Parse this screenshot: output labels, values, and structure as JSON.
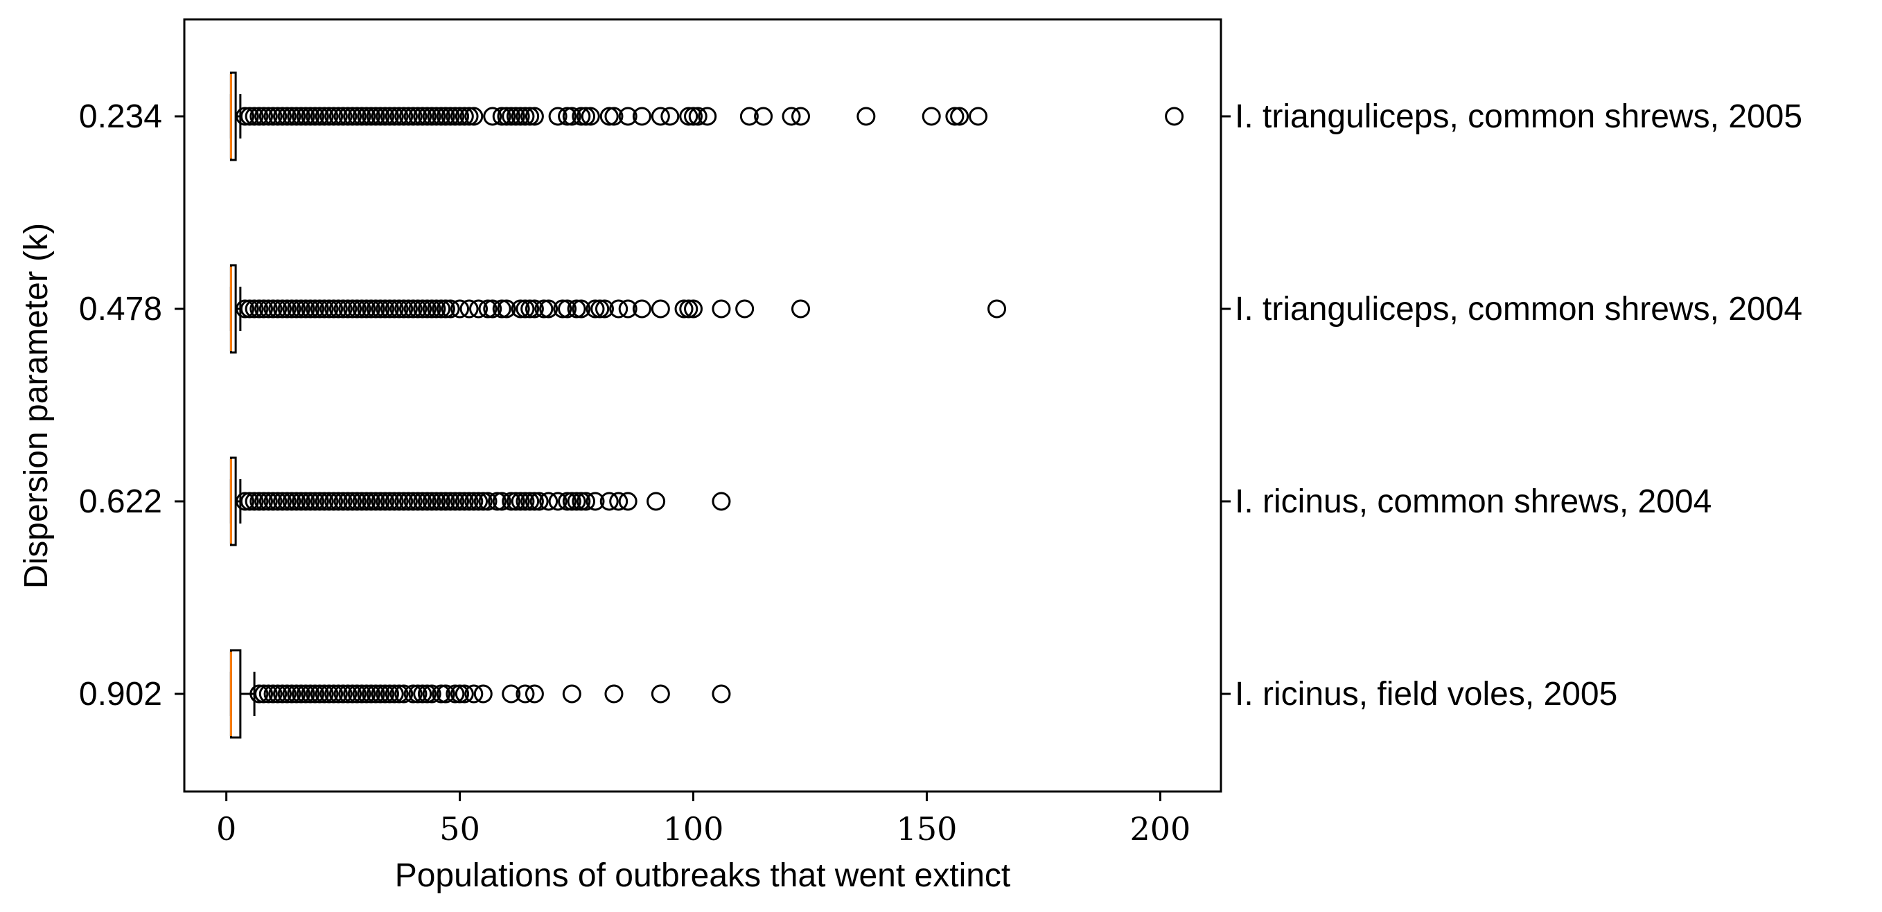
{
  "chart_data": {
    "type": "boxplot",
    "orientation": "horizontal",
    "xlabel": "Populations of outbreaks that went extinct",
    "ylabel": "Dispersion parameter (k)",
    "xlim": [
      -9,
      213
    ],
    "xticks": [
      0,
      50,
      100,
      150,
      200
    ],
    "grid": false,
    "colors": {
      "median": "#ff7f0e",
      "box": "#000000",
      "flier": "#000000"
    },
    "series": [
      {
        "k_label": "0.234",
        "right_label": "I. trianguliceps, common shrews, 2005",
        "box": {
          "whisker_low": 1,
          "q1": 1,
          "median": 1,
          "q3": 2,
          "whisker_high": 3
        },
        "fliers": [
          4,
          5,
          6,
          7,
          8,
          9,
          10,
          11,
          12,
          13,
          14,
          15,
          16,
          17,
          18,
          19,
          20,
          21,
          22,
          23,
          24,
          25,
          26,
          27,
          28,
          29,
          30,
          31,
          32,
          33,
          34,
          35,
          36,
          37,
          38,
          39,
          40,
          41,
          42,
          43,
          44,
          45,
          46,
          47,
          48,
          49,
          50,
          51,
          52,
          53,
          57,
          59,
          60,
          61,
          62,
          63,
          64,
          65,
          66,
          71,
          73,
          74,
          76,
          77,
          78,
          82,
          83,
          86,
          89,
          93,
          95,
          99,
          100,
          101,
          103,
          112,
          115,
          121,
          123,
          137,
          151,
          156,
          157,
          161,
          203
        ]
      },
      {
        "k_label": "0.478",
        "right_label": "I. trianguliceps, common shrews, 2004",
        "box": {
          "whisker_low": 1,
          "q1": 1,
          "median": 1,
          "q3": 2,
          "whisker_high": 3
        },
        "fliers": [
          4,
          5,
          6,
          7,
          8,
          9,
          10,
          11,
          12,
          13,
          14,
          15,
          16,
          17,
          18,
          19,
          20,
          21,
          22,
          23,
          24,
          25,
          26,
          27,
          28,
          29,
          30,
          31,
          32,
          33,
          34,
          35,
          36,
          37,
          38,
          39,
          40,
          41,
          42,
          43,
          44,
          45,
          46,
          47,
          48,
          50,
          52,
          54,
          56,
          57,
          59,
          60,
          63,
          64,
          65,
          66,
          68,
          69,
          72,
          73,
          75,
          76,
          79,
          80,
          81,
          84,
          86,
          89,
          93,
          98,
          99,
          100,
          106,
          111,
          123,
          165
        ]
      },
      {
        "k_label": "0.622",
        "right_label": "I. ricinus, common shrews, 2004",
        "box": {
          "whisker_low": 1,
          "q1": 1,
          "median": 1,
          "q3": 2,
          "whisker_high": 3
        },
        "fliers": [
          4,
          5,
          6,
          7,
          8,
          9,
          10,
          11,
          12,
          13,
          14,
          15,
          16,
          17,
          18,
          19,
          20,
          21,
          22,
          23,
          24,
          25,
          26,
          27,
          28,
          29,
          30,
          31,
          32,
          33,
          34,
          35,
          36,
          37,
          38,
          39,
          40,
          41,
          42,
          43,
          44,
          45,
          46,
          47,
          48,
          49,
          50,
          51,
          52,
          53,
          54,
          55,
          56,
          58,
          59,
          61,
          62,
          63,
          64,
          65,
          66,
          67,
          69,
          71,
          73,
          74,
          75,
          76,
          77,
          79,
          82,
          84,
          86,
          92,
          106
        ]
      },
      {
        "k_label": "0.902",
        "right_label": "I. ricinus, field voles, 2005",
        "box": {
          "whisker_low": 1,
          "q1": 1,
          "median": 1,
          "q3": 3,
          "whisker_high": 6
        },
        "fliers": [
          7,
          8,
          9,
          10,
          11,
          12,
          13,
          14,
          15,
          16,
          17,
          18,
          19,
          20,
          21,
          22,
          23,
          24,
          25,
          26,
          27,
          28,
          29,
          30,
          31,
          32,
          33,
          34,
          35,
          36,
          37,
          38,
          40,
          41,
          42,
          43,
          44,
          46,
          47,
          49,
          50,
          51,
          53,
          55,
          61,
          64,
          66,
          74,
          83,
          93,
          106
        ]
      }
    ]
  }
}
